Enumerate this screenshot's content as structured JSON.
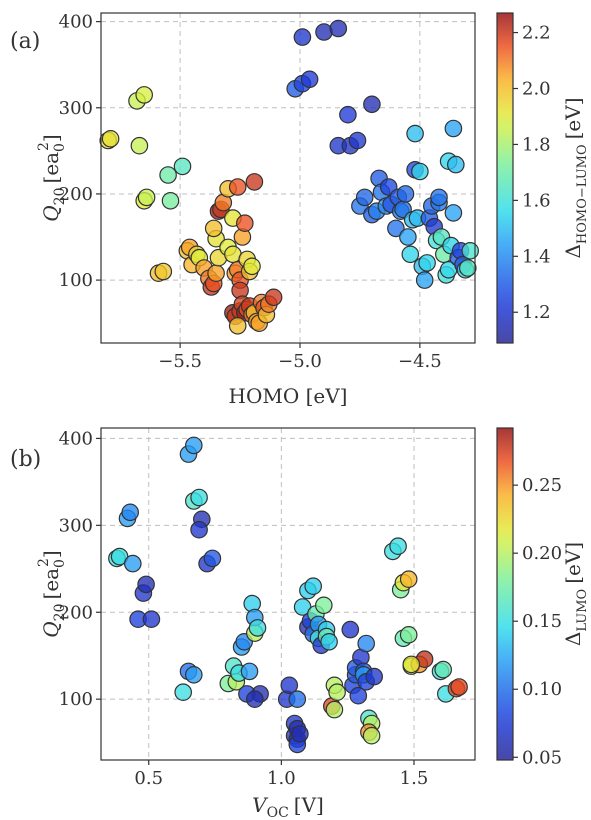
{
  "chart_data": [
    {
      "type": "scatter",
      "panel_label": "(a)",
      "xlabel": "HOMO [eV]",
      "ylabel_main": "Q",
      "ylabel_sub": "20",
      "ylabel_unit": "[ea",
      "ylabel_unit_sub": "0",
      "ylabel_unit_sup": "2",
      "ylabel_close": "]",
      "xlim": [
        -5.83,
        -4.27
      ],
      "ylim": [
        27,
        410
      ],
      "xticks": [
        -5.5,
        -5.0,
        -4.5
      ],
      "xtick_labels": [
        "−5.5",
        "−5.0",
        "−4.5"
      ],
      "yticks": [
        100,
        200,
        300,
        400
      ],
      "ytick_labels": [
        "100",
        "200",
        "300",
        "400"
      ],
      "grid": true,
      "colorbar": {
        "title_main": "Δ",
        "title_sub": "HOMO−LUMO",
        "title_unit": "[eV]",
        "range": [
          1.09,
          2.27
        ],
        "ticks": [
          1.2,
          1.4,
          1.6,
          1.8,
          2.0,
          2.2
        ],
        "tick_labels": [
          "1.2",
          "1.4",
          "1.6",
          "1.8",
          "2.0",
          "2.2"
        ]
      },
      "points": [
        [
          -5.8,
          262,
          1.95
        ],
        [
          -5.79,
          264,
          1.92
        ],
        [
          -5.68,
          308,
          1.85
        ],
        [
          -5.65,
          315,
          1.88
        ],
        [
          -5.67,
          256,
          1.85
        ],
        [
          -5.65,
          192,
          1.9
        ],
        [
          -5.64,
          196,
          1.85
        ],
        [
          -5.55,
          222,
          1.7
        ],
        [
          -5.54,
          192,
          1.72
        ],
        [
          -5.49,
          232,
          1.65
        ],
        [
          -5.59,
          108,
          2.0
        ],
        [
          -5.57,
          110,
          1.98
        ],
        [
          -5.47,
          134,
          2.0
        ],
        [
          -5.46,
          138,
          2.05
        ],
        [
          -5.45,
          118,
          2.02
        ],
        [
          -5.43,
          130,
          1.95
        ],
        [
          -5.42,
          126,
          1.9
        ],
        [
          -5.4,
          114,
          2.05
        ],
        [
          -5.38,
          102,
          2.1
        ],
        [
          -5.37,
          92,
          2.2
        ],
        [
          -5.36,
          96,
          2.15
        ],
        [
          -5.35,
          108,
          2.05
        ],
        [
          -5.34,
          126,
          1.95
        ],
        [
          -5.35,
          148,
          1.92
        ],
        [
          -5.36,
          160,
          2.0
        ],
        [
          -5.34,
          180,
          2.25
        ],
        [
          -5.33,
          182,
          2.2
        ],
        [
          -5.32,
          190,
          2.1
        ],
        [
          -5.3,
          206,
          2.0
        ],
        [
          -5.28,
          172,
          1.92
        ],
        [
          -5.3,
          138,
          1.9
        ],
        [
          -5.28,
          130,
          1.92
        ],
        [
          -5.27,
          108,
          2.05
        ],
        [
          -5.26,
          112,
          2.1
        ],
        [
          -5.25,
          100,
          2.15
        ],
        [
          -5.25,
          88,
          2.2
        ],
        [
          -5.26,
          208,
          2.15
        ],
        [
          -5.24,
          150,
          2.05
        ],
        [
          -5.23,
          166,
          2.15
        ],
        [
          -5.22,
          124,
          1.95
        ],
        [
          -5.21,
          110,
          2.0
        ],
        [
          -5.2,
          116,
          1.9
        ],
        [
          -5.19,
          214,
          2.2
        ],
        [
          -5.28,
          62,
          2.25
        ],
        [
          -5.27,
          58,
          2.2
        ],
        [
          -5.25,
          64,
          2.2
        ],
        [
          -5.24,
          72,
          2.18
        ],
        [
          -5.23,
          62,
          2.25
        ],
        [
          -5.22,
          66,
          2.15
        ],
        [
          -5.21,
          70,
          2.2
        ],
        [
          -5.2,
          60,
          2.1
        ],
        [
          -5.19,
          62,
          2.0
        ],
        [
          -5.18,
          52,
          2.05
        ],
        [
          -5.17,
          50,
          2.05
        ],
        [
          -5.16,
          74,
          2.1
        ],
        [
          -5.15,
          68,
          2.15
        ],
        [
          -5.14,
          60,
          2.0
        ],
        [
          -5.13,
          72,
          2.1
        ],
        [
          -5.11,
          80,
          2.2
        ],
        [
          -5.26,
          47,
          2.0
        ],
        [
          -5.02,
          322,
          1.3
        ],
        [
          -4.99,
          328,
          1.25
        ],
        [
          -4.96,
          333,
          1.22
        ],
        [
          -4.99,
          382,
          1.2
        ],
        [
          -4.9,
          388,
          1.15
        ],
        [
          -4.84,
          392,
          1.15
        ],
        [
          -4.84,
          256,
          1.2
        ],
        [
          -4.79,
          256,
          1.18
        ],
        [
          -4.8,
          292,
          1.22
        ],
        [
          -4.76,
          262,
          1.2
        ],
        [
          -4.7,
          304,
          1.15
        ],
        [
          -4.67,
          218,
          1.3
        ],
        [
          -4.75,
          186,
          1.35
        ],
        [
          -4.73,
          196,
          1.32
        ],
        [
          -4.7,
          176,
          1.3
        ],
        [
          -4.68,
          180,
          1.38
        ],
        [
          -4.66,
          202,
          1.35
        ],
        [
          -4.64,
          186,
          1.4
        ],
        [
          -4.63,
          208,
          1.25
        ],
        [
          -4.62,
          188,
          1.28
        ],
        [
          -4.6,
          160,
          1.35
        ],
        [
          -4.59,
          196,
          1.3
        ],
        [
          -4.58,
          180,
          1.38
        ],
        [
          -4.57,
          182,
          1.35
        ],
        [
          -4.56,
          200,
          1.32
        ],
        [
          -4.55,
          150,
          1.45
        ],
        [
          -4.54,
          130,
          1.55
        ],
        [
          -4.53,
          170,
          1.5
        ],
        [
          -4.52,
          228,
          1.25
        ],
        [
          -4.51,
          172,
          1.5
        ],
        [
          -4.5,
          226,
          1.55
        ],
        [
          -4.52,
          270,
          1.5
        ],
        [
          -4.49,
          116,
          1.5
        ],
        [
          -4.48,
          100,
          1.45
        ],
        [
          -4.47,
          120,
          1.55
        ],
        [
          -4.46,
          172,
          1.3
        ],
        [
          -4.45,
          186,
          1.32
        ],
        [
          -4.44,
          162,
          1.2
        ],
        [
          -4.43,
          146,
          1.6
        ],
        [
          -4.42,
          190,
          1.35
        ],
        [
          -4.41,
          150,
          1.65
        ],
        [
          -4.4,
          130,
          1.7
        ],
        [
          -4.39,
          106,
          1.6
        ],
        [
          -4.38,
          112,
          1.55
        ],
        [
          -4.37,
          140,
          1.55
        ],
        [
          -4.36,
          178,
          1.45
        ],
        [
          -4.38,
          238,
          1.55
        ],
        [
          -4.35,
          234,
          1.5
        ],
        [
          -4.36,
          276,
          1.45
        ],
        [
          -4.34,
          126,
          1.3
        ],
        [
          -4.33,
          134,
          1.25
        ],
        [
          -4.32,
          118,
          1.3
        ],
        [
          -4.31,
          112,
          1.55
        ],
        [
          -4.3,
          114,
          1.65
        ],
        [
          -4.29,
          134,
          1.62
        ],
        [
          -4.42,
          196,
          1.35
        ]
      ]
    },
    {
      "type": "scatter",
      "panel_label": "(b)",
      "xlabel_main": "V",
      "xlabel_sub": "OC",
      "xlabel_unit": "[V]",
      "ylabel_main": "Q",
      "ylabel_sub": "20",
      "ylabel_unit": "[ea",
      "ylabel_unit_sub": "0",
      "ylabel_unit_sup": "2",
      "ylabel_close": "]",
      "xlim": [
        0.32,
        1.73
      ],
      "ylim": [
        30,
        412
      ],
      "xticks": [
        0.5,
        1.0,
        1.5
      ],
      "xtick_labels": [
        "0.5",
        "1.0",
        "1.5"
      ],
      "yticks": [
        100,
        200,
        300,
        400
      ],
      "ytick_labels": [
        "100",
        "200",
        "300",
        "400"
      ],
      "grid": true,
      "colorbar": {
        "title_main": "Δ",
        "title_sub": "LUMO",
        "title_unit": "[eV]",
        "range": [
          0.048,
          0.292
        ],
        "ticks": [
          0.05,
          0.1,
          0.15,
          0.2,
          0.25
        ],
        "tick_labels": [
          "0.05",
          "0.10",
          "0.15",
          "0.20",
          "0.25"
        ]
      },
      "points": [
        [
          0.38,
          262,
          0.15
        ],
        [
          0.39,
          264,
          0.15
        ],
        [
          0.42,
          308,
          0.12
        ],
        [
          0.43,
          315,
          0.11
        ],
        [
          0.44,
          256,
          0.12
        ],
        [
          0.46,
          192,
          0.08
        ],
        [
          0.48,
          222,
          0.07
        ],
        [
          0.49,
          232,
          0.06
        ],
        [
          0.51,
          192,
          0.07
        ],
        [
          0.63,
          108,
          0.15
        ],
        [
          0.65,
          132,
          0.1
        ],
        [
          0.67,
          128,
          0.12
        ],
        [
          0.65,
          382,
          0.12
        ],
        [
          0.67,
          392,
          0.12
        ],
        [
          0.67,
          328,
          0.16
        ],
        [
          0.69,
          332,
          0.15
        ],
        [
          0.7,
          307,
          0.06
        ],
        [
          0.69,
          295,
          0.07
        ],
        [
          0.72,
          256,
          0.07
        ],
        [
          0.74,
          262,
          0.09
        ],
        [
          0.8,
          118,
          0.18
        ],
        [
          0.82,
          138,
          0.16
        ],
        [
          0.83,
          120,
          0.2
        ],
        [
          0.84,
          130,
          0.15
        ],
        [
          0.85,
          160,
          0.12
        ],
        [
          0.86,
          166,
          0.11
        ],
        [
          0.87,
          106,
          0.08
        ],
        [
          0.88,
          132,
          0.12
        ],
        [
          0.89,
          210,
          0.14
        ],
        [
          0.9,
          176,
          0.2
        ],
        [
          0.9,
          194,
          0.12
        ],
        [
          0.91,
          182,
          0.15
        ],
        [
          0.92,
          106,
          0.06
        ],
        [
          0.9,
          100,
          0.06
        ],
        [
          1.02,
          100,
          0.07
        ],
        [
          1.03,
          116,
          0.07
        ],
        [
          1.05,
          72,
          0.07
        ],
        [
          1.05,
          58,
          0.07
        ],
        [
          1.06,
          66,
          0.06
        ],
        [
          1.06,
          54,
          0.06
        ],
        [
          1.06,
          48,
          0.08
        ],
        [
          1.07,
          60,
          0.06
        ],
        [
          1.06,
          100,
          0.1
        ],
        [
          1.08,
          206,
          0.14
        ],
        [
          1.1,
          225,
          0.14
        ],
        [
          1.1,
          183,
          0.06
        ],
        [
          1.11,
          190,
          0.08
        ],
        [
          1.12,
          175,
          0.1
        ],
        [
          1.12,
          230,
          0.14
        ],
        [
          1.13,
          198,
          0.17
        ],
        [
          1.14,
          186,
          0.12
        ],
        [
          1.14,
          170,
          0.15
        ],
        [
          1.15,
          162,
          0.07
        ],
        [
          1.16,
          208,
          0.18
        ],
        [
          1.17,
          180,
          0.14
        ],
        [
          1.17,
          172,
          0.17
        ],
        [
          1.18,
          166,
          0.14
        ],
        [
          1.19,
          92,
          0.27
        ],
        [
          1.2,
          88,
          0.2
        ],
        [
          1.2,
          116,
          0.2
        ],
        [
          1.21,
          108,
          0.2
        ],
        [
          1.26,
          180,
          0.07
        ],
        [
          1.27,
          116,
          0.08
        ],
        [
          1.28,
          128,
          0.09
        ],
        [
          1.28,
          136,
          0.09
        ],
        [
          1.29,
          104,
          0.08
        ],
        [
          1.3,
          148,
          0.07
        ],
        [
          1.31,
          132,
          0.09
        ],
        [
          1.31,
          128,
          0.12
        ],
        [
          1.32,
          164,
          0.11
        ],
        [
          1.32,
          120,
          0.08
        ],
        [
          1.33,
          78,
          0.16
        ],
        [
          1.34,
          72,
          0.2
        ],
        [
          1.33,
          62,
          0.25
        ],
        [
          1.34,
          58,
          0.2
        ],
        [
          1.35,
          126,
          0.07
        ],
        [
          1.42,
          270,
          0.15
        ],
        [
          1.44,
          276,
          0.15
        ],
        [
          1.45,
          226,
          0.18
        ],
        [
          1.46,
          234,
          0.22
        ],
        [
          1.48,
          238,
          0.24
        ],
        [
          1.46,
          170,
          0.17
        ],
        [
          1.48,
          174,
          0.18
        ],
        [
          1.49,
          138,
          0.2
        ],
        [
          1.52,
          140,
          0.25
        ],
        [
          1.54,
          146,
          0.28
        ],
        [
          1.6,
          132,
          0.15
        ],
        [
          1.61,
          134,
          0.17
        ],
        [
          1.62,
          106,
          0.15
        ],
        [
          1.66,
          112,
          0.27
        ],
        [
          1.67,
          114,
          0.27
        ],
        [
          1.49,
          140,
          0.22
        ]
      ]
    }
  ]
}
